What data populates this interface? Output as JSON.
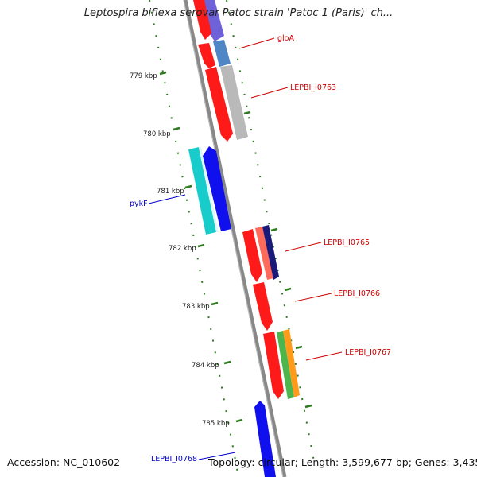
{
  "title": "Leptospira biflexa serovar Patoc strain 'Patoc 1 (Paris)' ch...",
  "footer": {
    "accession": "Accession: NC_010602",
    "summary": "Topology: circular; Length: 3,599,677 bp; Genes: 3,435"
  },
  "ticks": [
    {
      "label": "779 kbp"
    },
    {
      "label": "780 kbp"
    },
    {
      "label": "781 kbp"
    },
    {
      "label": "782 kbp"
    },
    {
      "label": "783 kbp"
    },
    {
      "label": "784 kbp"
    },
    {
      "label": "785 kbp"
    }
  ],
  "gene_labels": [
    {
      "text": "gloA",
      "color": "#cc0000"
    },
    {
      "text": "LEPBI_I0763",
      "color": "#cc0000"
    },
    {
      "text": "pykF",
      "color": "#0000cc"
    },
    {
      "text": "LEPBI_I0765",
      "color": "#cc0000"
    },
    {
      "text": "LEPBI_I0766",
      "color": "#cc0000"
    },
    {
      "text": "LEPBI_I0767",
      "color": "#cc0000"
    },
    {
      "text": "LEPBI_I0768",
      "color": "#0000cc"
    }
  ],
  "colors": {
    "backbone": "#888888",
    "tick": "#2d7a1f",
    "forward_cds": "#ff1a1a",
    "reverse_cds": "#1010ee",
    "blue_gene": "#6f62d8",
    "steel_blue": "#4f86c6",
    "gray_gene": "#b9b9b9",
    "cyan": "#19cccc",
    "salmon": "#ff6a5a",
    "navy": "#1a1a7a",
    "green": "#4cb54c",
    "orange": "#ff9a1a"
  }
}
